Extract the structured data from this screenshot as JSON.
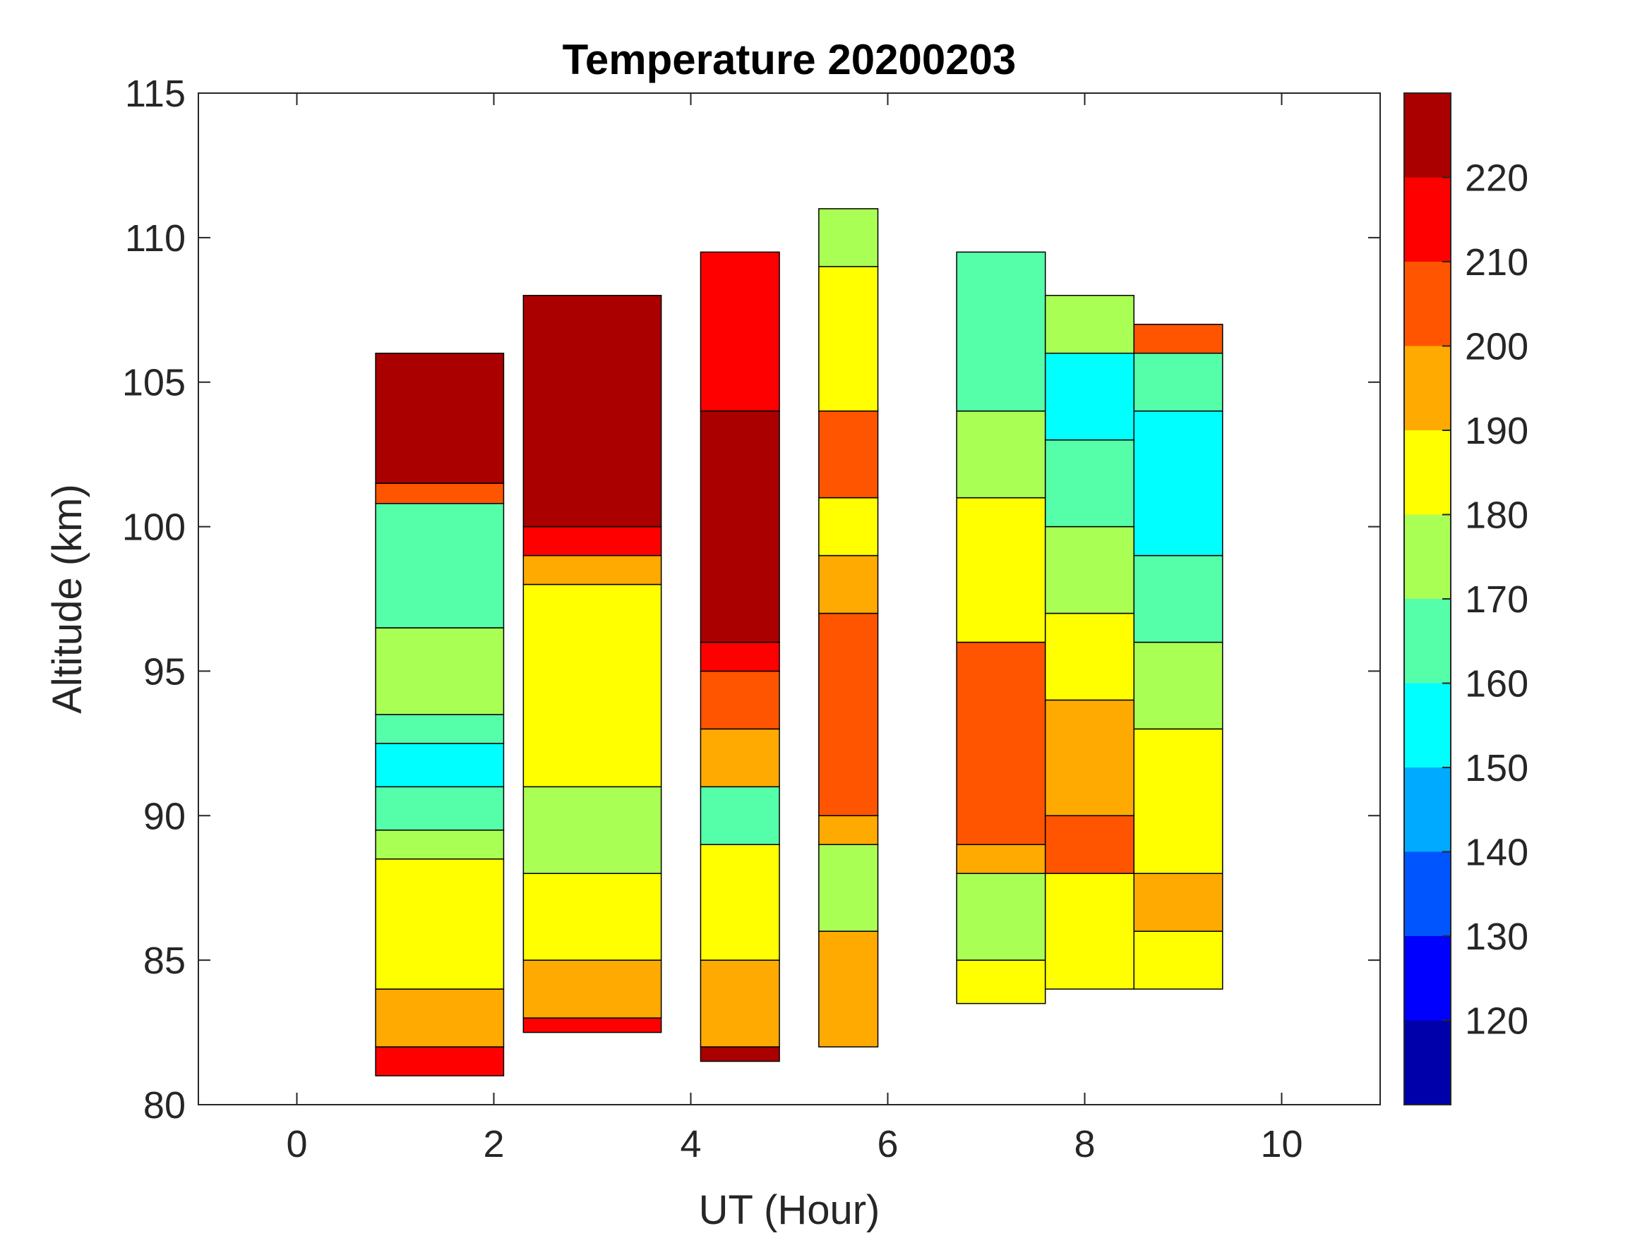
{
  "chart_data": {
    "type": "heatmap",
    "subtype": "filled-contour",
    "title": "Temperature 20200203",
    "xlabel": "UT (Hour)",
    "ylabel": "Altitude (km)",
    "xlim": [
      -1,
      11
    ],
    "ylim": [
      80,
      115
    ],
    "xticks": [
      0,
      2,
      4,
      6,
      8,
      10
    ],
    "yticks": [
      80,
      85,
      90,
      95,
      100,
      105,
      110,
      115
    ],
    "colormap": "jet",
    "colorbar": {
      "range": [
        110,
        230
      ],
      "levels": [
        110,
        120,
        130,
        140,
        150,
        160,
        170,
        180,
        190,
        200,
        210,
        220,
        230
      ],
      "ticks": [
        120,
        130,
        140,
        150,
        160,
        170,
        180,
        190,
        200,
        210,
        220
      ]
    },
    "segments": [
      {
        "x": [
          0.8,
          2.1
        ],
        "bands": [
          [
            81,
            82,
            215
          ],
          [
            82,
            84,
            195
          ],
          [
            84,
            88.5,
            185
          ],
          [
            88.5,
            89.5,
            175
          ],
          [
            89.5,
            91,
            165
          ],
          [
            91,
            92.5,
            155
          ],
          [
            92.5,
            93.5,
            165
          ],
          [
            93.5,
            96.5,
            175
          ],
          [
            96.5,
            100.8,
            165
          ],
          [
            100.8,
            101.5,
            200
          ],
          [
            101.5,
            106,
            225
          ]
        ]
      },
      {
        "x": [
          2.3,
          3.7
        ],
        "bands": [
          [
            82.5,
            83,
            215
          ],
          [
            83,
            85,
            195
          ],
          [
            85,
            88,
            185
          ],
          [
            88,
            91,
            175
          ],
          [
            91,
            98,
            185
          ],
          [
            98,
            99,
            195
          ],
          [
            99,
            100,
            215
          ],
          [
            100,
            108,
            225
          ]
        ]
      },
      {
        "x": [
          4.1,
          4.9
        ],
        "bands": [
          [
            81.5,
            82,
            225
          ],
          [
            82,
            85,
            195
          ],
          [
            85,
            89,
            185
          ],
          [
            89,
            91,
            165
          ],
          [
            91,
            93,
            195
          ],
          [
            93,
            95,
            205
          ],
          [
            95,
            96,
            215
          ],
          [
            96,
            104,
            225
          ],
          [
            104,
            109.5,
            210
          ]
        ]
      },
      {
        "x": [
          5.3,
          5.9
        ],
        "bands": [
          [
            82,
            86,
            195
          ],
          [
            86,
            89,
            175
          ],
          [
            89,
            90,
            195
          ],
          [
            90,
            97,
            205
          ],
          [
            97,
            99,
            195
          ],
          [
            99,
            101,
            185
          ],
          [
            101,
            104,
            205
          ],
          [
            104,
            109,
            185
          ],
          [
            109,
            111,
            175
          ]
        ]
      },
      {
        "x": [
          6.7,
          7.6
        ],
        "bands": [
          [
            83.5,
            85,
            185
          ],
          [
            85,
            88,
            178
          ],
          [
            88,
            89,
            195
          ],
          [
            89,
            96,
            205
          ],
          [
            96,
            101,
            185
          ],
          [
            101,
            104,
            175
          ],
          [
            104,
            109.5,
            165
          ]
        ]
      },
      {
        "x": [
          7.6,
          8.5
        ],
        "bands": [
          [
            84,
            88,
            185
          ],
          [
            88,
            90,
            205
          ],
          [
            90,
            94,
            195
          ],
          [
            94,
            97,
            185
          ],
          [
            97,
            100,
            175
          ],
          [
            100,
            103,
            165
          ],
          [
            103,
            106,
            155
          ],
          [
            106,
            108,
            175
          ]
        ]
      },
      {
        "x": [
          8.5,
          9.4
        ],
        "bands": [
          [
            84,
            86,
            180
          ],
          [
            86,
            88,
            195
          ],
          [
            88,
            93,
            185
          ],
          [
            93,
            96,
            175
          ],
          [
            96,
            99,
            165
          ],
          [
            99,
            104,
            155
          ],
          [
            104,
            106,
            165
          ],
          [
            106,
            107,
            200
          ]
        ]
      }
    ]
  }
}
